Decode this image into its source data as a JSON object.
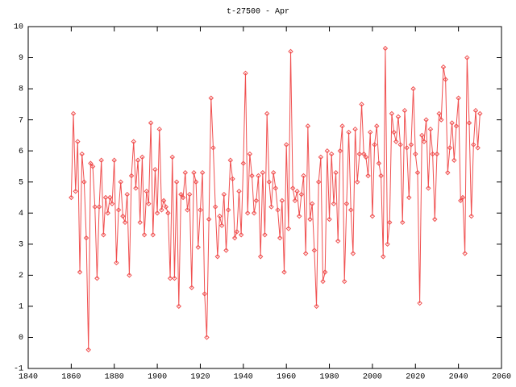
{
  "chart_data": {
    "type": "line",
    "title": "t-27500 - Apr",
    "x": [
      1860,
      1861,
      1862,
      1863,
      1864,
      1865,
      1866,
      1867,
      1868,
      1869,
      1870,
      1871,
      1872,
      1873,
      1874,
      1875,
      1876,
      1877,
      1878,
      1879,
      1880,
      1881,
      1882,
      1883,
      1884,
      1885,
      1886,
      1887,
      1888,
      1889,
      1890,
      1891,
      1892,
      1893,
      1894,
      1895,
      1896,
      1897,
      1898,
      1899,
      1900,
      1901,
      1902,
      1903,
      1904,
      1905,
      1906,
      1907,
      1908,
      1909,
      1910,
      1911,
      1912,
      1913,
      1914,
      1915,
      1916,
      1917,
      1918,
      1919,
      1920,
      1921,
      1922,
      1923,
      1924,
      1925,
      1926,
      1927,
      1928,
      1929,
      1930,
      1931,
      1932,
      1933,
      1934,
      1935,
      1936,
      1937,
      1938,
      1939,
      1940,
      1941,
      1942,
      1943,
      1944,
      1945,
      1946,
      1947,
      1948,
      1949,
      1950,
      1951,
      1952,
      1953,
      1954,
      1955,
      1956,
      1957,
      1958,
      1959,
      1960,
      1961,
      1962,
      1963,
      1964,
      1965,
      1966,
      1967,
      1968,
      1969,
      1970,
      1971,
      1972,
      1973,
      1974,
      1975,
      1976,
      1977,
      1978,
      1979,
      1980,
      1981,
      1982,
      1983,
      1984,
      1985,
      1986,
      1987,
      1988,
      1989,
      1990,
      1991,
      1992,
      1993,
      1994,
      1995,
      1996,
      1997,
      1998,
      1999,
      2000,
      2001,
      2002,
      2003,
      2004,
      2005,
      2006,
      2007,
      2008,
      2009,
      2010,
      2011,
      2012,
      2013,
      2014,
      2015,
      2016,
      2017,
      2018,
      2019,
      2020,
      2021,
      2022,
      2023,
      2024,
      2025,
      2026,
      2027,
      2028,
      2029,
      2030,
      2031,
      2032,
      2033,
      2034,
      2035,
      2036,
      2037,
      2038,
      2039,
      2040,
      2041,
      2042,
      2043,
      2044,
      2045,
      2046,
      2047,
      2048,
      2049,
      2050
    ],
    "series": [
      {
        "color": "#f05050",
        "values": [
          4.5,
          7.2,
          4.7,
          6.3,
          2.1,
          5.9,
          5.0,
          3.2,
          -0.4,
          5.6,
          5.5,
          4.2,
          1.9,
          4.2,
          5.7,
          3.3,
          4.5,
          4.0,
          4.5,
          4.3,
          5.7,
          2.4,
          4.1,
          5.0,
          3.9,
          3.7,
          4.6,
          2.0,
          5.2,
          6.3,
          4.8,
          5.7,
          3.7,
          5.8,
          3.3,
          4.7,
          4.3,
          6.9,
          3.3,
          5.4,
          4.0,
          6.7,
          4.1,
          4.4,
          4.2,
          4.0,
          1.9,
          5.8,
          1.9,
          5.0,
          1.0,
          4.6,
          4.5,
          5.3,
          4.1,
          4.6,
          1.6,
          5.3,
          5.0,
          2.9,
          4.1,
          5.3,
          1.4,
          0.0,
          3.8,
          7.7,
          6.1,
          4.2,
          2.6,
          3.9,
          3.6,
          4.6,
          2.8,
          4.1,
          5.7,
          5.1,
          3.2,
          3.4,
          4.7,
          3.3,
          5.6,
          8.5,
          4.0,
          5.9,
          5.2,
          4.0,
          4.4,
          5.2,
          2.6,
          5.3,
          3.3,
          7.2,
          5.0,
          4.2,
          5.3,
          4.8,
          4.1,
          3.2,
          4.4,
          2.1,
          6.2,
          3.5,
          9.2,
          4.8,
          4.4,
          4.7,
          3.9,
          4.6,
          5.2,
          2.7,
          6.8,
          3.8,
          4.3,
          2.8,
          1.0,
          5.0,
          5.8,
          1.8,
          2.1,
          6.0,
          3.8,
          5.9,
          4.3,
          5.3,
          3.1,
          6.0,
          6.8,
          1.8,
          4.3,
          6.6,
          4.1,
          2.7,
          6.7,
          5.0,
          5.9,
          7.5,
          5.9,
          5.8,
          5.2,
          6.6,
          3.9,
          6.2,
          6.8,
          5.6,
          5.2,
          2.6,
          9.3,
          3.0,
          3.7,
          7.2,
          6.6,
          6.3,
          7.1,
          6.2,
          3.7,
          7.3,
          6.1,
          4.5,
          6.2,
          8.0,
          5.9,
          5.3,
          1.1,
          6.5,
          6.3,
          7.0,
          4.8,
          6.7,
          5.9,
          3.8,
          5.9,
          7.2,
          7.0,
          8.7,
          8.3,
          5.3,
          6.1,
          6.9,
          5.7,
          6.8,
          7.7,
          4.4,
          4.5,
          2.7,
          9.0,
          6.9,
          3.9,
          6.2,
          7.3,
          6.1,
          7.2
        ]
      }
    ],
    "xlim": [
      1840,
      2060
    ],
    "xticks": [
      1840,
      1860,
      1880,
      1900,
      1920,
      1940,
      1960,
      1980,
      2000,
      2020,
      2040,
      2060
    ],
    "ylim": [
      -1,
      10
    ],
    "yticks": [
      -1,
      0,
      1,
      2,
      3,
      4,
      5,
      6,
      7,
      8,
      9,
      10
    ]
  }
}
